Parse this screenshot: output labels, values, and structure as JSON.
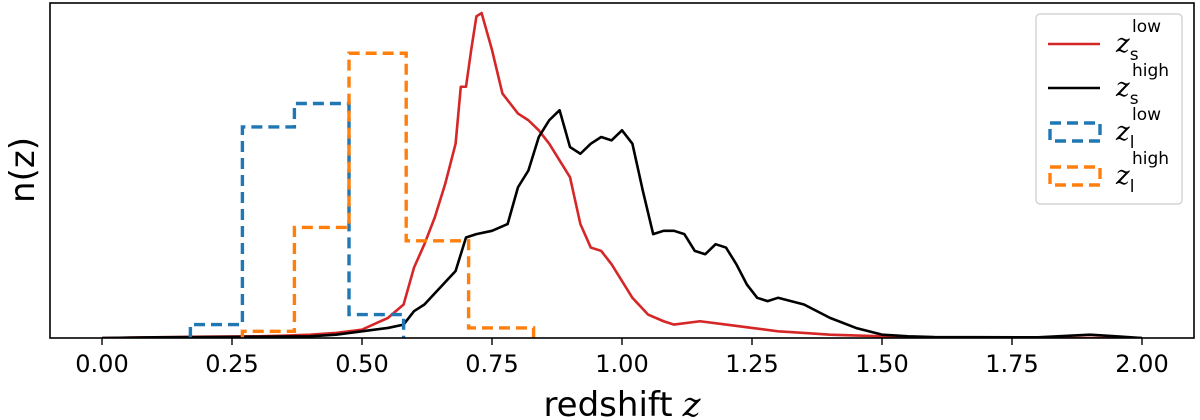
{
  "chart_data": {
    "type": "line",
    "xlabel": "redshift",
    "xlabel_var": "z",
    "ylabel": "n(z)",
    "xlim": [
      -0.1,
      2.1
    ],
    "ylim": [
      0,
      1.0
    ],
    "xticks": [
      0.0,
      0.25,
      0.5,
      0.75,
      1.0,
      1.25,
      1.5,
      1.75,
      2.0
    ],
    "xtick_labels": [
      "0.00",
      "0.25",
      "0.50",
      "0.75",
      "1.00",
      "1.25",
      "1.50",
      "1.75",
      "2.00"
    ],
    "legend_position": "top-right",
    "series": [
      {
        "name": "z_s^low",
        "label_main": "z",
        "label_sub": "s",
        "label_sup": "low",
        "kind": "line",
        "color": "#d62728",
        "x": [
          0.0,
          0.1,
          0.2,
          0.3,
          0.35,
          0.4,
          0.45,
          0.5,
          0.55,
          0.58,
          0.6,
          0.62,
          0.64,
          0.66,
          0.68,
          0.69,
          0.7,
          0.71,
          0.72,
          0.73,
          0.75,
          0.77,
          0.78,
          0.8,
          0.82,
          0.84,
          0.86,
          0.88,
          0.9,
          0.92,
          0.94,
          0.96,
          0.98,
          1.0,
          1.02,
          1.05,
          1.08,
          1.1,
          1.15,
          1.2,
          1.25,
          1.3,
          1.35,
          1.4,
          1.5,
          1.55,
          1.6,
          2.0
        ],
        "y": [
          0.0,
          0.002,
          0.004,
          0.005,
          0.007,
          0.01,
          0.015,
          0.025,
          0.06,
          0.1,
          0.21,
          0.28,
          0.36,
          0.46,
          0.58,
          0.75,
          0.75,
          0.86,
          0.96,
          0.97,
          0.86,
          0.73,
          0.71,
          0.67,
          0.65,
          0.62,
          0.58,
          0.53,
          0.48,
          0.34,
          0.27,
          0.26,
          0.22,
          0.17,
          0.12,
          0.07,
          0.05,
          0.04,
          0.05,
          0.04,
          0.03,
          0.02,
          0.015,
          0.01,
          0.005,
          0.003,
          0.0,
          0.0
        ]
      },
      {
        "name": "z_s^high",
        "label_main": "z",
        "label_sub": "s",
        "label_sup": "high",
        "kind": "line",
        "color": "#000000",
        "x": [
          0.0,
          0.1,
          0.2,
          0.3,
          0.4,
          0.45,
          0.5,
          0.55,
          0.58,
          0.6,
          0.62,
          0.65,
          0.68,
          0.7,
          0.72,
          0.75,
          0.78,
          0.8,
          0.82,
          0.84,
          0.86,
          0.88,
          0.9,
          0.92,
          0.94,
          0.96,
          0.98,
          1.0,
          1.02,
          1.04,
          1.06,
          1.08,
          1.1,
          1.12,
          1.14,
          1.16,
          1.18,
          1.2,
          1.22,
          1.24,
          1.26,
          1.28,
          1.3,
          1.35,
          1.4,
          1.45,
          1.5,
          1.55,
          1.6,
          1.8,
          1.9,
          1.95,
          2.0
        ],
        "y": [
          0.0,
          0.002,
          0.003,
          0.004,
          0.005,
          0.01,
          0.02,
          0.03,
          0.04,
          0.08,
          0.1,
          0.15,
          0.2,
          0.3,
          0.31,
          0.32,
          0.34,
          0.45,
          0.5,
          0.6,
          0.65,
          0.68,
          0.57,
          0.55,
          0.58,
          0.6,
          0.59,
          0.62,
          0.58,
          0.44,
          0.31,
          0.32,
          0.32,
          0.31,
          0.26,
          0.25,
          0.28,
          0.27,
          0.22,
          0.16,
          0.12,
          0.11,
          0.12,
          0.1,
          0.06,
          0.03,
          0.01,
          0.005,
          0.003,
          0.002,
          0.01,
          0.005,
          0.0
        ]
      },
      {
        "name": "z_l^low",
        "label_main": "z",
        "label_sub": "l",
        "label_sup": "low",
        "kind": "step",
        "color": "#1f77b4",
        "edges": [
          0.17,
          0.27,
          0.37,
          0.475,
          0.58
        ],
        "heights": [
          0.04,
          0.63,
          0.7,
          0.07
        ]
      },
      {
        "name": "z_l^high",
        "label_main": "z",
        "label_sub": "l",
        "label_sup": "high",
        "kind": "step",
        "color": "#ff7f0e",
        "edges": [
          0.27,
          0.37,
          0.475,
          0.585,
          0.705,
          0.83
        ],
        "heights": [
          0.02,
          0.33,
          0.85,
          0.29,
          0.03
        ]
      }
    ]
  }
}
